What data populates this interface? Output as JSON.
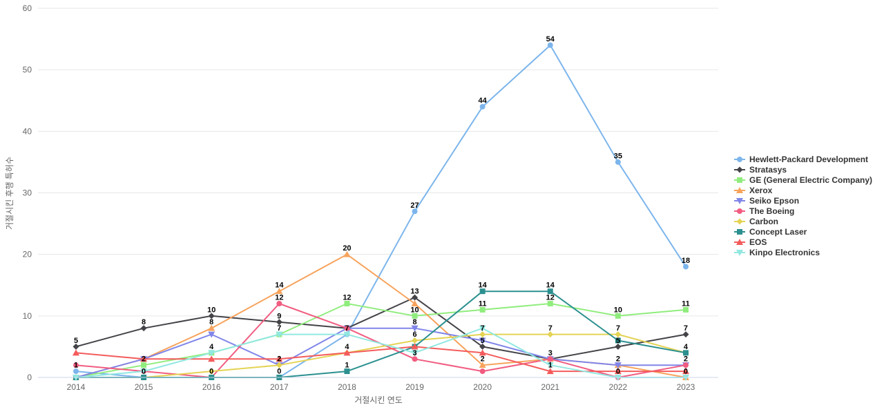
{
  "chart": {
    "y_axis_title": "거절시킨 후행 특허수",
    "x_axis_title": "거절시킨 연도",
    "y_ticks": [
      0,
      10,
      20,
      30,
      40,
      50,
      60
    ],
    "background_color": "#ffffff",
    "grid_color": "#e6e6e6",
    "x_axis_line_color": "#ccd6eb",
    "tick_label_color": "#666666",
    "axis_title_color": "#666666",
    "data_label_color": "#000000",
    "legend_text_color": "#333333"
  },
  "chart_data": {
    "type": "line",
    "title": "",
    "xlabel": "거절시킨 연도",
    "ylabel": "거절시킨 후행 특허수",
    "x": [
      2014,
      2015,
      2016,
      2017,
      2018,
      2019,
      2020,
      2021,
      2022,
      2023
    ],
    "ylim": [
      0,
      60
    ],
    "grid": true,
    "legend_position": "right",
    "series": [
      {
        "name": "Hewlett-Packard Development",
        "color": "#7cb5ec",
        "marker": "circle",
        "values": [
          1,
          0,
          0,
          0,
          7,
          27,
          44,
          54,
          35,
          18
        ]
      },
      {
        "name": "Stratasys",
        "color": "#434348",
        "marker": "diamond",
        "values": [
          5,
          8,
          10,
          9,
          8,
          13,
          5,
          3,
          5,
          7
        ]
      },
      {
        "name": "GE (General Electric Company)",
        "color": "#90ed7d",
        "marker": "square",
        "values": [
          0,
          2,
          4,
          7,
          12,
          10,
          11,
          12,
          10,
          11
        ]
      },
      {
        "name": "Xerox",
        "color": "#f7a35c",
        "marker": "triangle",
        "values": [
          0,
          3,
          8,
          14,
          20,
          12,
          2,
          3,
          2,
          0
        ]
      },
      {
        "name": "Seiko Epson",
        "color": "#8085e9",
        "marker": "triangle-down",
        "values": [
          0,
          3,
          7,
          2,
          8,
          8,
          6,
          3,
          2,
          2
        ]
      },
      {
        "name": "The Boeing",
        "color": "#f15c80",
        "marker": "circle",
        "values": [
          2,
          1,
          0,
          12,
          8,
          3,
          1,
          3,
          0,
          2
        ]
      },
      {
        "name": "Carbon",
        "color": "#e4d354",
        "marker": "diamond",
        "values": [
          0,
          0,
          1,
          2,
          4,
          6,
          7,
          7,
          7,
          4
        ]
      },
      {
        "name": "Concept Laser",
        "color": "#2b908f",
        "marker": "square",
        "values": [
          0,
          0,
          0,
          0,
          1,
          5,
          14,
          14,
          6,
          4
        ]
      },
      {
        "name": "EOS",
        "color": "#f45b5b",
        "marker": "triangle",
        "values": [
          4,
          3,
          3,
          3,
          4,
          5,
          4,
          1,
          1,
          1
        ]
      },
      {
        "name": "Kinpo Electronics",
        "color": "#91e8e1",
        "marker": "triangle-down",
        "values": [
          0,
          1,
          4,
          7,
          7,
          4,
          8,
          2,
          0,
          0
        ]
      }
    ]
  }
}
